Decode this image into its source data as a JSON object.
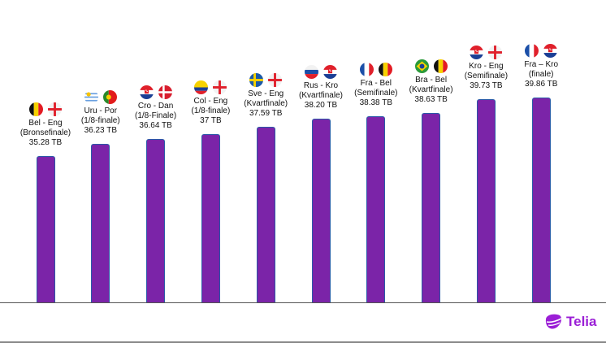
{
  "chart_data": {
    "type": "bar",
    "title": "",
    "xlabel": "",
    "ylabel": "",
    "unit": "TB",
    "ylim": [
      23.75,
      47.5
    ],
    "grid": false,
    "bar_color": "#7b24a8",
    "categories": [
      {
        "match": "Bel - Eng",
        "stage": "(Bronsefinale)",
        "value_label": "35.28 TB",
        "flags": [
          "belgium-flag",
          "england-flag"
        ]
      },
      {
        "match": "Uru - Por",
        "stage": "(1/8-finale)",
        "value_label": "36.23 TB",
        "flags": [
          "uruguay-flag",
          "portugal-flag"
        ]
      },
      {
        "match": "Cro - Dan",
        "stage": "(1/8-Finale)",
        "value_label": "36.64 TB",
        "flags": [
          "croatia-flag",
          "denmark-flag"
        ]
      },
      {
        "match": "Col - Eng",
        "stage": "(1/8-finale)",
        "value_label": "37 TB",
        "flags": [
          "colombia-flag",
          "england-flag"
        ]
      },
      {
        "match": "Sve - Eng",
        "stage": "(Kvartfinale)",
        "value_label": "37.59 TB",
        "flags": [
          "sweden-flag",
          "england-flag"
        ]
      },
      {
        "match": "Rus - Kro",
        "stage": "(Kvartfinale)",
        "value_label": "38.20 TB",
        "flags": [
          "russia-flag",
          "croatia-flag"
        ]
      },
      {
        "match": "Fra - Bel",
        "stage": "(Semifinale)",
        "value_label": "38.38 TB",
        "flags": [
          "france-flag",
          "belgium-flag"
        ]
      },
      {
        "match": "Bra - Bel",
        "stage": "(Kvartfinale)",
        "value_label": "38.63 TB",
        "flags": [
          "brazil-flag",
          "belgium-flag"
        ]
      },
      {
        "match": "Kro - Eng",
        "stage": "(Semifinale)",
        "value_label": "39.73 TB",
        "flags": [
          "croatia-flag",
          "england-flag"
        ]
      },
      {
        "match": "Fra – Kro",
        "stage": "(finale)",
        "value_label": "39.86 TB",
        "flags": [
          "france-flag",
          "croatia-flag"
        ]
      }
    ],
    "values": [
      35.28,
      36.23,
      36.64,
      37,
      37.59,
      38.2,
      38.38,
      38.63,
      39.73,
      39.86
    ]
  },
  "logo": {
    "text": "Telia"
  }
}
